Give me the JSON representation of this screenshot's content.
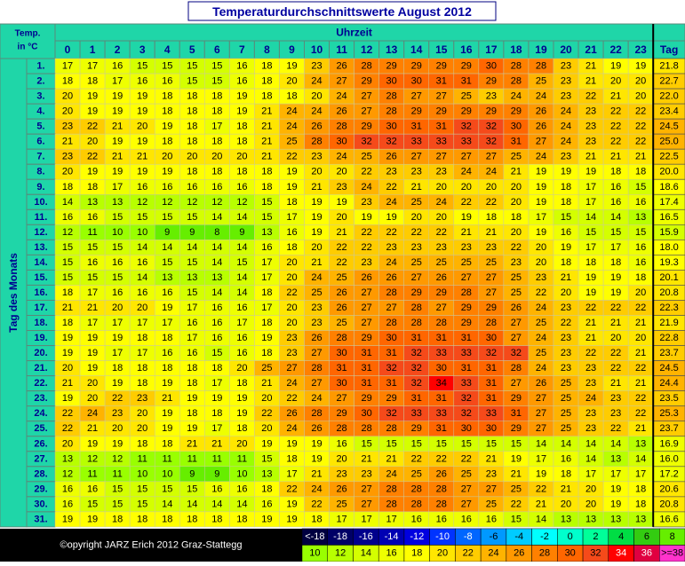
{
  "title": "Temperaturdurchschnittswerte August 2012",
  "corner_label": [
    "Temp.",
    "in °C"
  ],
  "x_axis_label": "Uhrzeit",
  "y_axis_label": "Tag des Monats",
  "total_label": "Tag",
  "hours": [
    0,
    1,
    2,
    3,
    4,
    5,
    6,
    7,
    8,
    9,
    10,
    11,
    12,
    13,
    14,
    15,
    16,
    17,
    18,
    19,
    20,
    21,
    22,
    23
  ],
  "rows": [
    {
      "day": "1.",
      "hourly": [
        17,
        17,
        16,
        15,
        15,
        15,
        15,
        16,
        18,
        19,
        23,
        26,
        28,
        29,
        29,
        29,
        29,
        30,
        28,
        28,
        23,
        21,
        19,
        19
      ],
      "daily": 21.8
    },
    {
      "day": "2.",
      "hourly": [
        18,
        18,
        17,
        16,
        16,
        15,
        15,
        16,
        18,
        20,
        24,
        27,
        29,
        30,
        30,
        31,
        31,
        29,
        28,
        25,
        23,
        21,
        20,
        20
      ],
      "daily": 22.7
    },
    {
      "day": "3.",
      "hourly": [
        20,
        19,
        19,
        19,
        18,
        18,
        18,
        19,
        18,
        18,
        20,
        24,
        27,
        28,
        27,
        27,
        25,
        23,
        24,
        24,
        23,
        22,
        21,
        20
      ],
      "daily": 22.0,
      "daily_label": "22.0"
    },
    {
      "day": "4.",
      "hourly": [
        20,
        19,
        19,
        19,
        18,
        18,
        18,
        19,
        21,
        24,
        24,
        26,
        27,
        28,
        29,
        29,
        29,
        29,
        29,
        26,
        24,
        23,
        22,
        22
      ],
      "daily": 23.4
    },
    {
      "day": "5.",
      "hourly": [
        23,
        22,
        21,
        20,
        19,
        18,
        17,
        18,
        21,
        24,
        26,
        28,
        29,
        30,
        31,
        31,
        32,
        32,
        30,
        26,
        24,
        23,
        22,
        22
      ],
      "daily": 24.5
    },
    {
      "day": "6.",
      "hourly": [
        21,
        20,
        19,
        19,
        18,
        18,
        18,
        18,
        21,
        25,
        28,
        30,
        32,
        32,
        33,
        33,
        33,
        32,
        31,
        27,
        24,
        23,
        22,
        22
      ],
      "daily": 25.0,
      "daily_label": "25.0"
    },
    {
      "day": "7.",
      "hourly": [
        23,
        22,
        21,
        21,
        20,
        20,
        20,
        20,
        21,
        22,
        23,
        24,
        25,
        26,
        27,
        27,
        27,
        27,
        25,
        24,
        23,
        21,
        21,
        21
      ],
      "daily": 22.5
    },
    {
      "day": "8.",
      "hourly": [
        20,
        19,
        19,
        19,
        19,
        18,
        18,
        18,
        18,
        19,
        20,
        20,
        22,
        23,
        23,
        23,
        24,
        24,
        21,
        19,
        19,
        19,
        18,
        18
      ],
      "daily": 20.0,
      "daily_label": "20.0"
    },
    {
      "day": "9.",
      "hourly": [
        18,
        18,
        17,
        16,
        16,
        16,
        16,
        16,
        18,
        19,
        21,
        23,
        24,
        22,
        21,
        20,
        20,
        20,
        20,
        19,
        18,
        17,
        16,
        15
      ],
      "daily": 18.6
    },
    {
      "day": "10.",
      "hourly": [
        14,
        13,
        13,
        12,
        12,
        12,
        12,
        12,
        15,
        18,
        19,
        19,
        23,
        24,
        25,
        24,
        22,
        22,
        20,
        19,
        18,
        17,
        16,
        16
      ],
      "daily": 17.4
    },
    {
      "day": "11.",
      "hourly": [
        16,
        16,
        15,
        15,
        15,
        15,
        14,
        14,
        15,
        17,
        19,
        20,
        19,
        19,
        20,
        20,
        19,
        18,
        18,
        17,
        15,
        14,
        14,
        13
      ],
      "daily": 16.5
    },
    {
      "day": "12.",
      "hourly": [
        12,
        11,
        10,
        10,
        9,
        9,
        8,
        9,
        13,
        16,
        19,
        21,
        22,
        22,
        22,
        22,
        21,
        21,
        20,
        19,
        16,
        15,
        15,
        15
      ],
      "daily": 15.9
    },
    {
      "day": "13.",
      "hourly": [
        15,
        15,
        15,
        14,
        14,
        14,
        14,
        14,
        16,
        18,
        20,
        22,
        22,
        23,
        23,
        23,
        23,
        23,
        22,
        20,
        19,
        17,
        17,
        16
      ],
      "daily": 18.0,
      "daily_label": "18.0"
    },
    {
      "day": "14.",
      "hourly": [
        15,
        16,
        16,
        16,
        15,
        15,
        14,
        15,
        17,
        20,
        21,
        22,
        23,
        24,
        25,
        25,
        25,
        25,
        23,
        20,
        18,
        18,
        18,
        16
      ],
      "daily": 19.3
    },
    {
      "day": "15.",
      "hourly": [
        15,
        15,
        15,
        14,
        13,
        13,
        13,
        14,
        17,
        20,
        24,
        25,
        26,
        26,
        27,
        26,
        27,
        27,
        25,
        23,
        21,
        19,
        19,
        18
      ],
      "daily": 20.1
    },
    {
      "day": "16.",
      "hourly": [
        18,
        17,
        16,
        16,
        16,
        15,
        14,
        14,
        18,
        22,
        25,
        26,
        27,
        28,
        29,
        29,
        28,
        27,
        25,
        22,
        20,
        19,
        19,
        20
      ],
      "daily": 20.8
    },
    {
      "day": "17.",
      "hourly": [
        21,
        21,
        20,
        20,
        19,
        17,
        16,
        16,
        17,
        20,
        23,
        26,
        27,
        27,
        28,
        27,
        29,
        29,
        26,
        24,
        23,
        22,
        22,
        22
      ],
      "daily": 22.3
    },
    {
      "day": "18.",
      "hourly": [
        18,
        17,
        17,
        17,
        17,
        16,
        16,
        17,
        18,
        20,
        23,
        25,
        27,
        28,
        28,
        28,
        29,
        28,
        27,
        25,
        22,
        21,
        21,
        21
      ],
      "daily": 21.9
    },
    {
      "day": "19.",
      "hourly": [
        19,
        19,
        19,
        18,
        18,
        17,
        16,
        16,
        19,
        23,
        26,
        28,
        29,
        30,
        31,
        31,
        31,
        30,
        27,
        24,
        23,
        21,
        20,
        20
      ],
      "daily": 22.8
    },
    {
      "day": "20.",
      "hourly": [
        19,
        19,
        17,
        17,
        16,
        16,
        15,
        16,
        18,
        23,
        27,
        30,
        31,
        31,
        32,
        33,
        33,
        32,
        32,
        25,
        23,
        22,
        22,
        21
      ],
      "daily": 23.7
    },
    {
      "day": "21.",
      "hourly": [
        20,
        19,
        18,
        18,
        18,
        18,
        18,
        20,
        25,
        27,
        28,
        31,
        31,
        32,
        32,
        30,
        31,
        31,
        28,
        24,
        23,
        23,
        22,
        22
      ],
      "daily": 24.5
    },
    {
      "day": "22.",
      "hourly": [
        21,
        20,
        19,
        18,
        19,
        18,
        17,
        18,
        21,
        24,
        27,
        30,
        31,
        31,
        32,
        34,
        33,
        31,
        27,
        26,
        25,
        23,
        21,
        21
      ],
      "daily": 24.4
    },
    {
      "day": "23.",
      "hourly": [
        19,
        20,
        22,
        23,
        21,
        19,
        19,
        19,
        20,
        22,
        24,
        27,
        29,
        29,
        31,
        31,
        32,
        31,
        29,
        27,
        25,
        24,
        23,
        22
      ],
      "daily": 23.5
    },
    {
      "day": "24.",
      "hourly": [
        22,
        24,
        23,
        20,
        19,
        18,
        18,
        19,
        22,
        26,
        28,
        29,
        30,
        32,
        33,
        33,
        32,
        33,
        31,
        27,
        25,
        23,
        23,
        22
      ],
      "daily": 25.3
    },
    {
      "day": "25.",
      "hourly": [
        22,
        21,
        20,
        20,
        19,
        19,
        17,
        18,
        20,
        24,
        26,
        28,
        28,
        28,
        29,
        31,
        30,
        30,
        29,
        27,
        25,
        23,
        22,
        21
      ],
      "daily": 23.7
    },
    {
      "day": "26.",
      "hourly": [
        20,
        19,
        19,
        18,
        18,
        21,
        21,
        20,
        19,
        19,
        19,
        16,
        15,
        15,
        15,
        15,
        15,
        15,
        15,
        14,
        14,
        14,
        14,
        13
      ],
      "daily": 16.9
    },
    {
      "day": "27.",
      "hourly": [
        13,
        12,
        12,
        11,
        11,
        11,
        11,
        11,
        15,
        18,
        19,
        20,
        21,
        21,
        22,
        22,
        22,
        21,
        19,
        17,
        16,
        14,
        13,
        14
      ],
      "daily": 16.0,
      "daily_label": "16.0"
    },
    {
      "day": "28.",
      "hourly": [
        12,
        11,
        11,
        10,
        10,
        9,
        9,
        10,
        13,
        17,
        21,
        23,
        23,
        24,
        25,
        26,
        25,
        23,
        21,
        19,
        18,
        17,
        17,
        17
      ],
      "daily": 17.2
    },
    {
      "day": "29.",
      "hourly": [
        16,
        16,
        15,
        15,
        15,
        15,
        16,
        16,
        18,
        22,
        24,
        26,
        27,
        28,
        28,
        28,
        27,
        27,
        25,
        22,
        21,
        20,
        19,
        18
      ],
      "daily": 20.6
    },
    {
      "day": "30.",
      "hourly": [
        16,
        15,
        15,
        15,
        14,
        14,
        14,
        14,
        16,
        19,
        22,
        25,
        27,
        28,
        28,
        28,
        27,
        25,
        22,
        21,
        20,
        20,
        19,
        18
      ],
      "daily": 20.8
    },
    {
      "day": "31.",
      "hourly": [
        19,
        19,
        18,
        18,
        18,
        18,
        18,
        18,
        19,
        19,
        18,
        17,
        17,
        17,
        16,
        16,
        16,
        16,
        15,
        14,
        13,
        13,
        13,
        13
      ],
      "daily": 16.6
    }
  ],
  "copyright": "©opyright JARZ Erich 2012 Graz-Stattegg",
  "legend": [
    {
      "label": "<-18",
      "color": "#000040"
    },
    {
      "value": -18,
      "color": "#000066"
    },
    {
      "value": -16,
      "color": "#00008c"
    },
    {
      "value": -14,
      "color": "#0000b3"
    },
    {
      "value": -12,
      "color": "#0000e0"
    },
    {
      "value": -10,
      "color": "#0033ff"
    },
    {
      "value": -8,
      "color": "#0066ff"
    },
    {
      "value": -6,
      "color": "#0099ff"
    },
    {
      "value": -4,
      "color": "#00ccff"
    },
    {
      "value": -2,
      "color": "#00ffff"
    },
    {
      "value": 0,
      "color": "#00ffcc"
    },
    {
      "value": 2,
      "color": "#00ff99"
    },
    {
      "value": 4,
      "color": "#00dd44"
    },
    {
      "value": 6,
      "color": "#33cc11"
    },
    {
      "value": 8,
      "color": "#66ee00"
    },
    {
      "value": 10,
      "color": "#99ff00"
    },
    {
      "value": 12,
      "color": "#b8ff00"
    },
    {
      "value": 14,
      "color": "#d4ff00"
    },
    {
      "value": 16,
      "color": "#eeff00"
    },
    {
      "value": 18,
      "color": "#ffff00"
    },
    {
      "value": 20,
      "color": "#ffe600"
    },
    {
      "value": 22,
      "color": "#ffcc00"
    },
    {
      "value": 24,
      "color": "#ffb300"
    },
    {
      "value": 26,
      "color": "#ff9900"
    },
    {
      "value": 28,
      "color": "#ff8000"
    },
    {
      "value": 30,
      "color": "#ff6600"
    },
    {
      "value": 32,
      "color": "#f54a1a"
    },
    {
      "value": 34,
      "color": "#ff0000"
    },
    {
      "value": 36,
      "color": "#e00040"
    },
    {
      "value": 38,
      "label": ">=38",
      "color": "#ff33cc"
    }
  ]
}
